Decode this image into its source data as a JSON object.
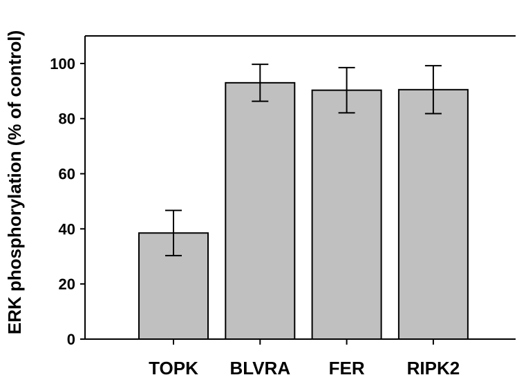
{
  "chart_data": {
    "type": "bar",
    "categories": [
      "TOPK",
      "BLVRA",
      "FER",
      "RIPK2"
    ],
    "values": [
      38.5,
      93.0,
      90.3,
      90.5
    ],
    "error": [
      8.2,
      6.7,
      8.2,
      8.7
    ],
    "title": "",
    "xlabel": "",
    "ylabel": "ERK phosphorylation (% of control)",
    "ylim": [
      0,
      110
    ],
    "yticks": [
      0,
      20,
      40,
      60,
      80,
      100
    ],
    "grid": false,
    "bar_color": "#c0c0c0",
    "edge_color": "#000000"
  }
}
